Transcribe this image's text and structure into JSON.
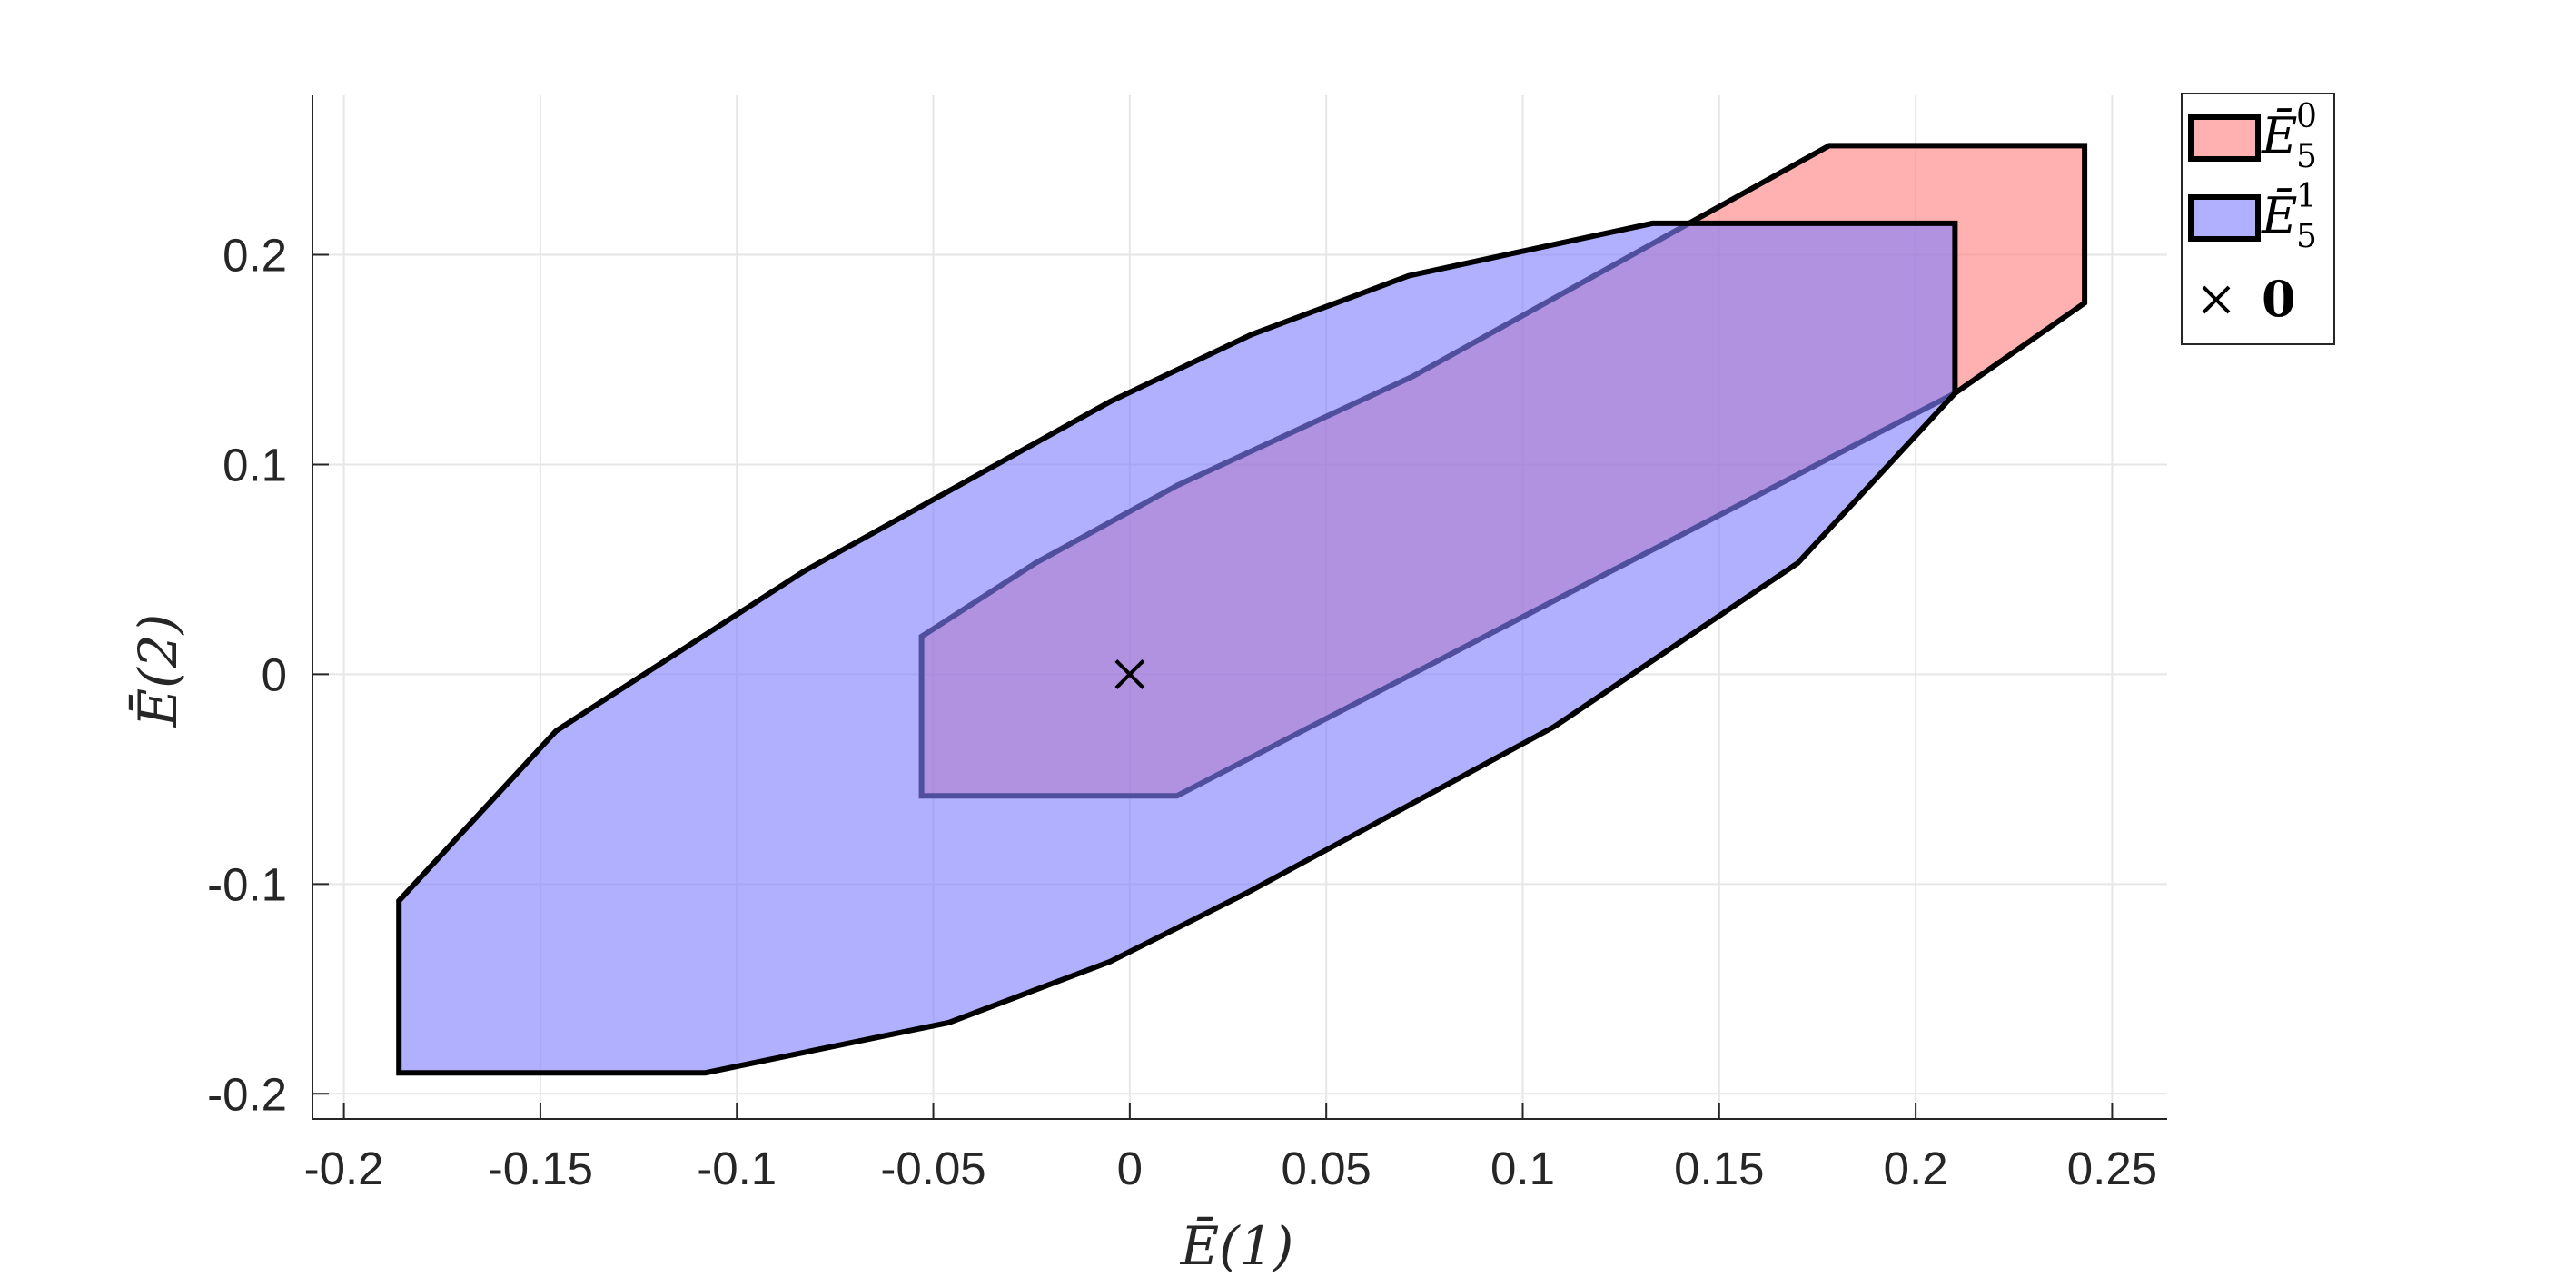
{
  "chart_data": {
    "type": "area",
    "xlabel": "Ē(1)",
    "ylabel": "Ē(2)",
    "xlim": [
      -0.208,
      0.264
    ],
    "ylim": [
      -0.212,
      0.276
    ],
    "x_ticks": [
      -0.2,
      -0.15,
      -0.1,
      -0.05,
      0,
      0.05,
      0.1,
      0.15,
      0.2,
      0.25
    ],
    "x_tick_labels": [
      "-0.2",
      "-0.15",
      "-0.1",
      "-0.05",
      "0",
      "0.05",
      "0.1",
      "0.15",
      "0.2",
      "0.25"
    ],
    "y_ticks": [
      -0.2,
      -0.1,
      0,
      0.1,
      0.2
    ],
    "y_tick_labels": [
      "-0.2",
      "-0.1",
      "0",
      "0.1",
      "0.2"
    ],
    "grid": true,
    "legend_position": "outside-top-right",
    "series": [
      {
        "name_main": "Ē",
        "name_sub": "5",
        "name_sup": "0",
        "color": "#ff8080",
        "opacity": 0.62,
        "polygon": [
          [
            -0.053,
            0.018
          ],
          [
            -0.024,
            0.053
          ],
          [
            0.012,
            0.09
          ],
          [
            0.072,
            0.142
          ],
          [
            0.178,
            0.252
          ],
          [
            0.243,
            0.252
          ],
          [
            0.243,
            0.177
          ],
          [
            0.21,
            0.134
          ],
          [
            0.012,
            -0.058
          ],
          [
            -0.053,
            -0.058
          ]
        ]
      },
      {
        "name_main": "Ē",
        "name_sub": "5",
        "name_sup": "1",
        "color": "#8080ff",
        "opacity": 0.62,
        "polygon": [
          [
            -0.186,
            -0.108
          ],
          [
            -0.146,
            -0.027
          ],
          [
            -0.083,
            0.049
          ],
          [
            -0.005,
            0.13
          ],
          [
            0.031,
            0.162
          ],
          [
            0.071,
            0.19
          ],
          [
            0.133,
            0.215
          ],
          [
            0.21,
            0.215
          ],
          [
            0.21,
            0.134
          ],
          [
            0.17,
            0.053
          ],
          [
            0.108,
            -0.025
          ],
          [
            0.03,
            -0.104
          ],
          [
            -0.005,
            -0.137
          ],
          [
            -0.046,
            -0.166
          ],
          [
            -0.108,
            -0.19
          ],
          [
            -0.186,
            -0.19
          ]
        ]
      }
    ],
    "point": {
      "name": "0",
      "x": 0,
      "y": 0,
      "marker": "×"
    }
  }
}
